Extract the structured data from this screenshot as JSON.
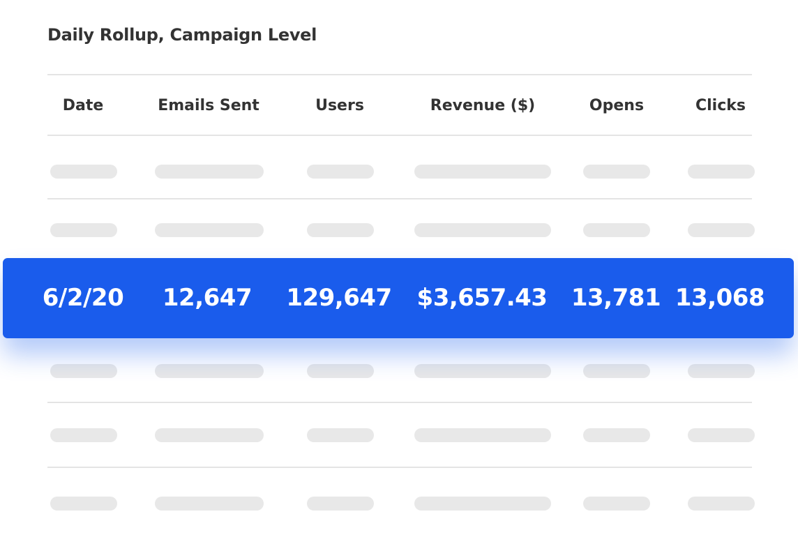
{
  "title": "Daily Rollup, Campaign Level",
  "columns": [
    "Date",
    "Emails Sent",
    "Users",
    "Revenue ($)",
    "Opens",
    "Clicks"
  ],
  "highlighted_row": {
    "date": "6/2/20",
    "emails_sent": "12,647",
    "users": "129,647",
    "revenue": "$3,657.43",
    "opens": "13,781",
    "clicks": "13,068"
  },
  "colors": {
    "highlight": "#1a5cec",
    "placeholder": "#e8e8e8",
    "divider": "#e4e4e4",
    "text": "#333333"
  }
}
